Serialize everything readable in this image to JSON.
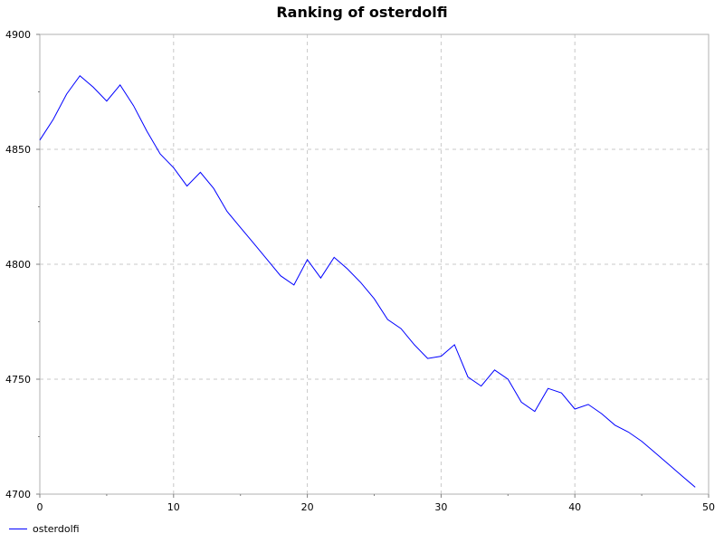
{
  "chart_data": {
    "type": "line",
    "title": "Ranking of osterdolfi",
    "xlabel": "",
    "ylabel": "",
    "xlim": [
      0,
      50
    ],
    "ylim": [
      4700,
      4900
    ],
    "xticks": [
      0,
      10,
      20,
      30,
      40,
      50
    ],
    "yticks": [
      4700,
      4750,
      4800,
      4850,
      4900
    ],
    "grid": true,
    "legend_position": "bottom-left",
    "series": [
      {
        "name": "osterdolfi",
        "color": "#0000ff",
        "x": [
          0,
          1,
          2,
          3,
          4,
          5,
          6,
          7,
          8,
          9,
          10,
          11,
          12,
          13,
          14,
          15,
          16,
          17,
          18,
          19,
          20,
          21,
          22,
          23,
          24,
          25,
          26,
          27,
          28,
          29,
          30,
          31,
          32,
          33,
          34,
          35,
          36,
          37,
          38,
          39,
          40,
          41,
          42,
          43,
          44,
          45,
          46,
          47,
          48,
          49
        ],
        "y": [
          4854,
          4863,
          4874,
          4882,
          4877,
          4871,
          4878,
          4869,
          4858,
          4848,
          4842,
          4834,
          4840,
          4833,
          4823,
          4816,
          4809,
          4802,
          4795,
          4791,
          4802,
          4794,
          4803,
          4798,
          4792,
          4785,
          4776,
          4772,
          4765,
          4759,
          4760,
          4765,
          4751,
          4747,
          4754,
          4750,
          4740,
          4736,
          4746,
          4744,
          4737,
          4739,
          4735,
          4730,
          4727,
          4723,
          4718,
          4713,
          4708,
          4703
        ]
      }
    ]
  }
}
